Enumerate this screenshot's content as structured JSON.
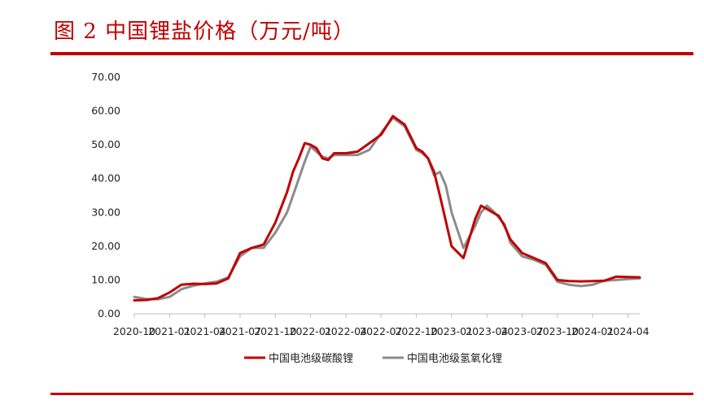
{
  "title": "图 2 中国锂盐价格（万元/吨）",
  "colors": {
    "accent": "#c00000",
    "series_carbonate": "#c00000",
    "series_hydroxide": "#8c8c8c"
  },
  "chart_data": {
    "type": "line",
    "title": "",
    "xlabel": "",
    "ylabel": "",
    "ylim": [
      0,
      70
    ],
    "yticks": [
      "0.00",
      "10.00",
      "20.00",
      "30.00",
      "40.00",
      "50.00",
      "60.00",
      "70.00"
    ],
    "xticks": [
      "2020-10",
      "2021-01",
      "2021-04",
      "2021-07",
      "2021-10",
      "2022-01",
      "2022-04",
      "2022-07",
      "2022-10",
      "2023-01",
      "2023-04",
      "2023-07",
      "2023-10",
      "2024-01",
      "2024-04"
    ],
    "xlim": [
      0,
      43
    ],
    "grid": false,
    "legend_position": "bottom",
    "series": [
      {
        "name": "中国电池级碳酸锂",
        "x": [
          0,
          1,
          2,
          3,
          4,
          5,
          6,
          7,
          8,
          9,
          10,
          11,
          12,
          13,
          13.5,
          14,
          14.5,
          15,
          15.5,
          16,
          16.5,
          17,
          18,
          19,
          20,
          21,
          22,
          23,
          24,
          24.5,
          25,
          25.5,
          26,
          27,
          28,
          29,
          29.5,
          30,
          30.5,
          31,
          31.5,
          32,
          33,
          34,
          35,
          36,
          37,
          38,
          39,
          40,
          41,
          42,
          43
        ],
        "y": [
          4.0,
          4.1,
          4.6,
          6.3,
          8.6,
          8.9,
          8.8,
          9.0,
          10.5,
          18.0,
          19.5,
          20.5,
          27.0,
          36.0,
          42.0,
          46.0,
          50.5,
          50.0,
          49.0,
          46.0,
          45.5,
          47.5,
          47.5,
          48.0,
          50.5,
          53.0,
          58.5,
          56.0,
          49.0,
          48.0,
          46.0,
          42.0,
          35.0,
          20.0,
          16.5,
          28.0,
          32.0,
          31.0,
          30.0,
          29.0,
          26.0,
          22.0,
          18.0,
          16.5,
          15.0,
          10.0,
          9.7,
          9.6,
          9.7,
          9.8,
          11.0,
          10.9,
          10.8
        ]
      },
      {
        "name": "中国电池级氢氧化锂",
        "x": [
          0,
          1,
          2,
          3,
          4,
          5,
          6,
          7,
          8,
          9,
          10,
          11,
          12,
          13,
          13.5,
          14,
          14.5,
          15,
          15.5,
          16,
          16.5,
          17,
          18,
          19,
          20,
          21,
          22,
          23,
          24,
          24.5,
          25,
          25.5,
          26,
          26.5,
          27,
          28,
          29,
          29.5,
          30,
          30.5,
          31,
          31.5,
          32,
          33,
          34,
          35,
          36,
          37,
          38,
          39,
          40,
          41,
          42,
          43
        ],
        "y": [
          5.0,
          4.4,
          4.3,
          5.0,
          7.3,
          8.3,
          9.0,
          9.5,
          10.8,
          17.0,
          19.5,
          19.5,
          24.0,
          30.0,
          35.0,
          40.0,
          45.0,
          49.5,
          48.0,
          46.5,
          46.0,
          47.0,
          47.0,
          47.0,
          48.5,
          53.5,
          58.0,
          55.5,
          48.5,
          47.5,
          46.0,
          41.0,
          42.0,
          38.0,
          30.0,
          19.5,
          26.0,
          30.0,
          32.0,
          30.5,
          28.5,
          26.5,
          21.0,
          17.0,
          16.0,
          14.5,
          9.5,
          8.6,
          8.2,
          8.6,
          9.8,
          10.0,
          10.3,
          10.5
        ]
      }
    ]
  }
}
